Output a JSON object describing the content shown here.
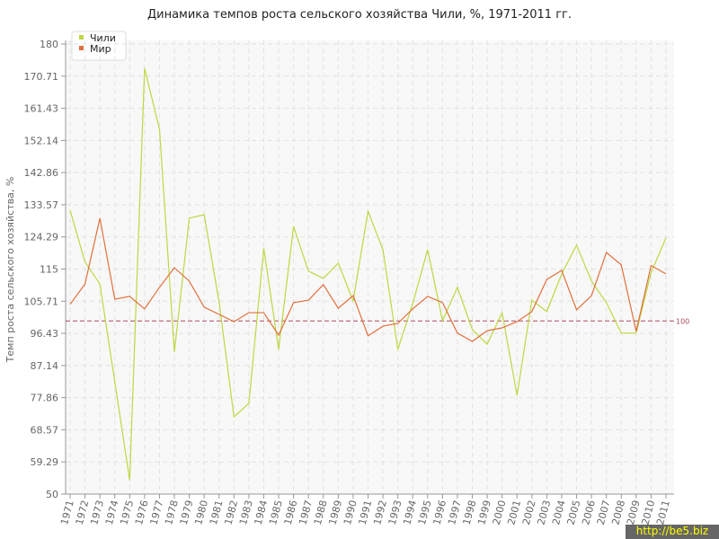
{
  "chart_data": {
    "type": "line",
    "title": "Динамика темпов роста сельского хозяйства Чили, %, 1971-2011 гг.",
    "y_label": "Темп роста сельского хозяйства, %",
    "categories": [
      "1971",
      "1972",
      "1973",
      "1974",
      "1975",
      "1976",
      "1977",
      "1978",
      "1979",
      "1980",
      "1981",
      "1982",
      "1983",
      "1984",
      "1985",
      "1986",
      "1987",
      "1988",
      "1989",
      "1990",
      "1991",
      "1992",
      "1993",
      "1994",
      "1995",
      "1996",
      "1997",
      "1998",
      "1999",
      "2000",
      "2001",
      "2002",
      "2003",
      "2004",
      "2005",
      "2006",
      "2007",
      "2008",
      "2009",
      "2010",
      "2011"
    ],
    "series": [
      {
        "name": "Чили",
        "color": "#bcd843",
        "values": [
          132,
          117,
          110.7,
          82.4,
          54,
          173,
          155.4,
          91,
          129.7,
          130.7,
          105.5,
          72.3,
          76.2,
          121,
          91.8,
          127.3,
          114.4,
          112.3,
          116.7,
          105.8,
          131.7,
          120.6,
          91.8,
          105,
          120.6,
          100.1,
          109.7,
          97.5,
          93.3,
          102.4,
          78.5,
          106,
          102.7,
          113.6,
          121.9,
          111.5,
          105.3,
          96.5,
          96.5,
          114,
          124
        ]
      },
      {
        "name": "Мир",
        "color": "#e0703c",
        "values": [
          104.8,
          110.7,
          129.7,
          106.3,
          107.1,
          103.5,
          109.7,
          115.4,
          111.5,
          104,
          101.9,
          99.8,
          102.4,
          102.4,
          95.9,
          105.3,
          106,
          110.5,
          103.7,
          107.3,
          95.7,
          98.5,
          99.3,
          103.5,
          107.1,
          105.3,
          96.5,
          94.1,
          97.2,
          98,
          99.8,
          102.7,
          112,
          114.6,
          103.2,
          107.3,
          119.8,
          116.2,
          97,
          116,
          113.6
        ]
      }
    ],
    "ylim": [
      50,
      180
    ],
    "yticks": [
      50,
      59.29,
      68.57,
      77.86,
      87.14,
      96.43,
      105.71,
      115,
      124.29,
      133.57,
      142.86,
      152.14,
      161.43,
      170.71,
      180
    ],
    "reference_line": 100,
    "reference_color": "#b0485a",
    "grid": true,
    "legend": "top-left",
    "watermark": "http://be5.biz"
  }
}
